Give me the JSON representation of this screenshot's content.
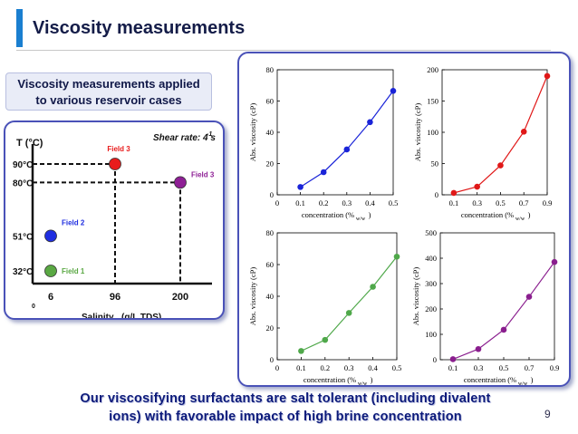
{
  "slide": {
    "title": "Viscosity measurements",
    "callout": [
      "Viscosity measurements applied",
      "to various reservoir cases"
    ],
    "banner": [
      "Our viscosifying surfactants are salt tolerant (including divalent",
      "ions) with favorable impact of high brine concentration"
    ],
    "page_number": "9"
  },
  "field_diagram": {
    "y_axis_label": "T (°C)",
    "shear_rate": "Shear rate: 4 s",
    "shear_rate_sup": "-1",
    "x_axis_label": "Salinity",
    "x_axis_unit": "(g/L TDS)",
    "origin": "0",
    "x_ticks": [
      "6",
      "96",
      "200"
    ],
    "y_ticks": [
      "32°C",
      "51°C",
      "80°C",
      "90°C"
    ],
    "fields": [
      {
        "label": "Field 1",
        "salinity": 6,
        "temperature": 32,
        "color": "#5aa843"
      },
      {
        "label": "Field 2",
        "salinity": 6,
        "temperature": 51,
        "color": "#1f2ee0"
      },
      {
        "label": "Field 3",
        "salinity": 96,
        "temperature": 90,
        "color": "#e81c1c"
      },
      {
        "label": "Field 3",
        "salinity": 200,
        "temperature": 80,
        "color": "#8e1f95"
      }
    ]
  },
  "chart_data": [
    {
      "type": "line",
      "ylabel": "Abs. viscosity (cP)",
      "xlabel": "concentration (%",
      "xlabel_sub": "w/w",
      "xlabel_end": ")",
      "x": [
        0.1,
        0.2,
        0.3,
        0.4,
        0.5
      ],
      "values": [
        5,
        14.5,
        29,
        46.5,
        66.5
      ],
      "xlim": [
        0,
        0.5
      ],
      "ylim": [
        0,
        80
      ],
      "x_ticks": [
        "0",
        "0.1",
        "0.2",
        "0.3",
        "0.4",
        "0.5"
      ],
      "y_ticks": [
        "0",
        "20",
        "40",
        "60",
        "80"
      ],
      "color": "#1a24d8"
    },
    {
      "type": "line",
      "ylabel": "Abs. viscosity (cP)",
      "xlabel": "concentration (%",
      "xlabel_sub": "w/w",
      "xlabel_end": ")",
      "x": [
        0.1,
        0.3,
        0.5,
        0.7,
        0.9
      ],
      "values": [
        3,
        13,
        47,
        101,
        190
      ],
      "xlim": [
        0,
        0.9
      ],
      "ylim": [
        0,
        200
      ],
      "x_ticks": [
        "0.1",
        "0.3",
        "0.5",
        "0.7",
        "0.9"
      ],
      "y_ticks": [
        "0",
        "50",
        "100",
        "150",
        "200"
      ],
      "color": "#e01818"
    },
    {
      "type": "line",
      "ylabel": "Abs. viscosity (cP)",
      "xlabel": "concentration (%",
      "xlabel_sub": "w/w",
      "xlabel_end": ")",
      "x": [
        0.1,
        0.2,
        0.3,
        0.4,
        0.5
      ],
      "values": [
        5.5,
        12.5,
        29.5,
        46,
        65
      ],
      "xlim": [
        0,
        0.5
      ],
      "ylim": [
        0,
        80
      ],
      "x_ticks": [
        "0",
        "0.1",
        "0.2",
        "0.3",
        "0.4",
        "0.5"
      ],
      "y_ticks": [
        "0",
        "20",
        "40",
        "60",
        "80"
      ],
      "color": "#4fa84a"
    },
    {
      "type": "line",
      "ylabel": "Abs. viscosity (cP)",
      "xlabel": "concentration (%",
      "xlabel_sub": "w/w",
      "xlabel_end": ")",
      "x": [
        0.1,
        0.3,
        0.5,
        0.7,
        0.9
      ],
      "values": [
        2,
        42,
        118,
        248,
        385
      ],
      "xlim": [
        0,
        0.9
      ],
      "ylim": [
        0,
        500
      ],
      "x_ticks": [
        "0.1",
        "0.3",
        "0.5",
        "0.7",
        "0.9"
      ],
      "y_ticks": [
        "0",
        "100",
        "200",
        "300",
        "400",
        "500"
      ],
      "color": "#8a1e8e"
    }
  ]
}
